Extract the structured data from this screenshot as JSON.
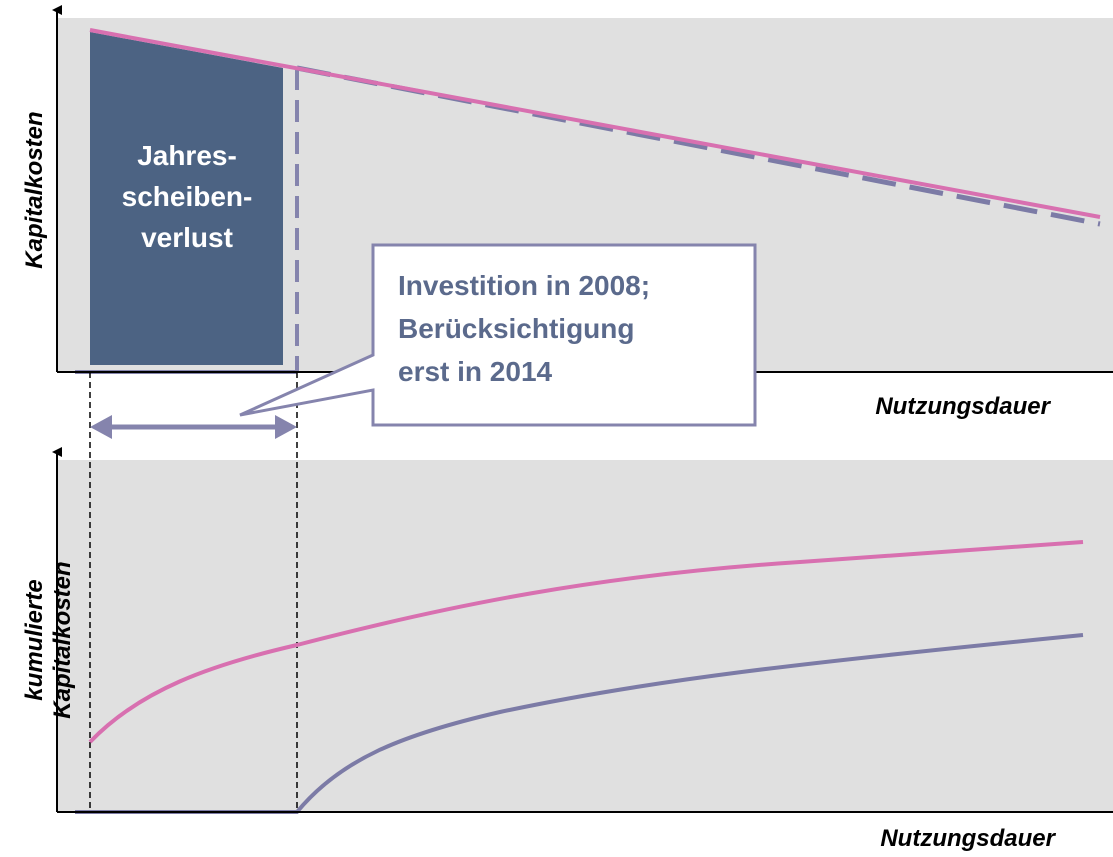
{
  "top_panel": {
    "y_axis_label": "Kapitalkosten",
    "x_axis_label": "Nutzungsdauer",
    "loss_box": {
      "lines": [
        "Jahres-",
        "scheiben-",
        "verlust"
      ]
    }
  },
  "callout": {
    "lines": [
      "Investition in 2008;",
      "Berücksichtigung",
      "erst in 2014"
    ]
  },
  "bottom_panel": {
    "y_axis_label_lines": [
      "kumulierte",
      "Kapitalkosten"
    ],
    "x_axis_label": "Nutzungsdauer"
  }
}
